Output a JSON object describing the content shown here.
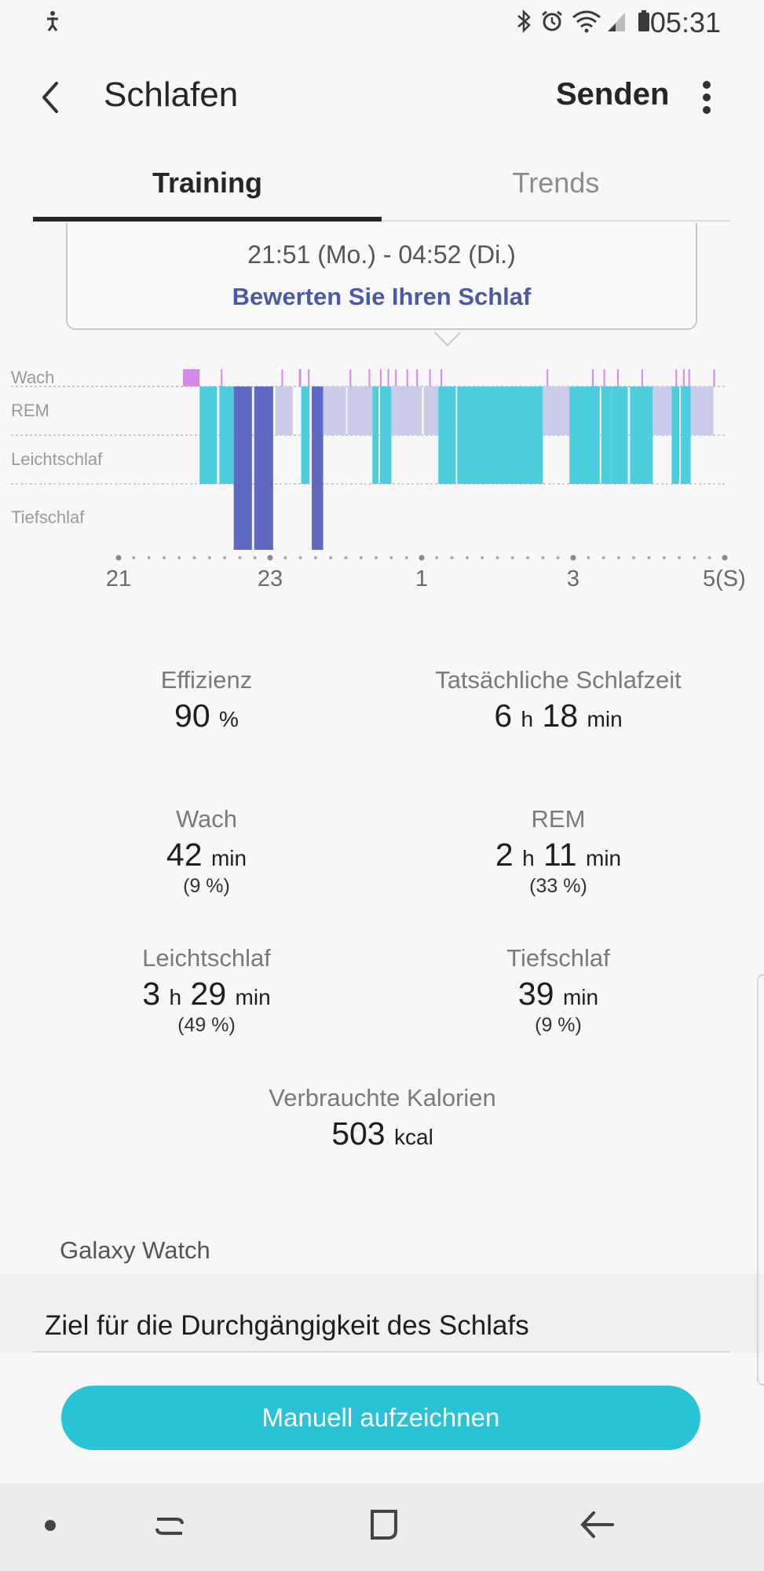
{
  "status_bar": {
    "time": "05:31"
  },
  "header": {
    "title": "Schlafen",
    "send_label": "Senden"
  },
  "tabs": [
    {
      "label": "Training",
      "active": true
    },
    {
      "label": "Trends",
      "active": false
    }
  ],
  "tooltip": {
    "time_range": "21:51 (Mo.) - 04:52 (Di.)",
    "rate_link": "Bewerten Sie Ihren Schlaf"
  },
  "chart_data": {
    "type": "hypnogram",
    "stages": [
      "Wach",
      "REM",
      "Leichtschlaf",
      "Tiefschlaf"
    ],
    "x_ticks": [
      "21",
      "23",
      "1",
      "3",
      "5(S)"
    ],
    "x_range_hours": [
      21,
      29
    ],
    "colors": {
      "Wach": "#d48ae8",
      "REM": "#c9cbe9",
      "Leichtschlaf": "#4ccede",
      "Tiefschlaf": "#5f68c2"
    },
    "segments": [
      {
        "stage": "Wach",
        "start": 21.85,
        "end": 22.07
      },
      {
        "stage": "Leichtschlaf",
        "start": 22.07,
        "end": 22.3
      },
      {
        "stage": "Leichtschlaf",
        "start": 22.33,
        "end": 22.52
      },
      {
        "stage": "Tiefschlaf",
        "start": 22.52,
        "end": 22.76
      },
      {
        "stage": "Tiefschlaf",
        "start": 22.79,
        "end": 23.04
      },
      {
        "stage": "REM",
        "start": 23.07,
        "end": 23.3
      },
      {
        "stage": "Wach",
        "start": 23.38,
        "end": 23.41
      },
      {
        "stage": "Leichtschlaf",
        "start": 23.41,
        "end": 23.52
      },
      {
        "stage": "Tiefschlaf",
        "start": 23.55,
        "end": 23.7
      },
      {
        "stage": "REM",
        "start": 23.7,
        "end": 24.0
      },
      {
        "stage": "REM",
        "start": 24.02,
        "end": 24.35
      },
      {
        "stage": "Leichtschlaf",
        "start": 24.35,
        "end": 24.43
      },
      {
        "stage": "Leichtschlaf",
        "start": 24.45,
        "end": 24.6
      },
      {
        "stage": "REM",
        "start": 24.6,
        "end": 25.0
      },
      {
        "stage": "REM",
        "start": 25.03,
        "end": 25.22
      },
      {
        "stage": "Leichtschlaf",
        "start": 25.22,
        "end": 25.45
      },
      {
        "stage": "Leichtschlaf",
        "start": 25.47,
        "end": 26.6
      },
      {
        "stage": "REM",
        "start": 26.6,
        "end": 26.95
      },
      {
        "stage": "Leichtschlaf",
        "start": 26.95,
        "end": 27.35
      },
      {
        "stage": "Leichtschlaf",
        "start": 27.37,
        "end": 27.5
      },
      {
        "stage": "Leichtschlaf",
        "start": 27.5,
        "end": 27.72
      },
      {
        "stage": "Leichtschlaf",
        "start": 27.75,
        "end": 28.05
      },
      {
        "stage": "REM",
        "start": 28.05,
        "end": 28.3
      },
      {
        "stage": "Leichtschlaf",
        "start": 28.3,
        "end": 28.4
      },
      {
        "stage": "Leichtschlaf",
        "start": 28.42,
        "end": 28.55
      },
      {
        "stage": "REM",
        "start": 28.55,
        "end": 28.85
      }
    ],
    "wake_blips": [
      22.35,
      23.15,
      23.5,
      24.05,
      24.3,
      24.45,
      24.55,
      24.65,
      24.8,
      24.93,
      25.1,
      25.25,
      26.65,
      27.25,
      27.4,
      27.58,
      27.9,
      28.35,
      28.45,
      28.52,
      28.85
    ]
  },
  "stats": {
    "efficiency": {
      "title": "Effizienz",
      "value": "90",
      "unit": "%"
    },
    "actual_sleep": {
      "title": "Tatsächliche Schlafzeit",
      "h": "6",
      "h_unit": "h",
      "m": "18",
      "m_unit": "min"
    },
    "wake": {
      "title": "Wach",
      "m": "42",
      "m_unit": "min",
      "pct": "(9 %)"
    },
    "rem": {
      "title": "REM",
      "h": "2",
      "h_unit": "h",
      "m": "11",
      "m_unit": "min",
      "pct": "(33 %)"
    },
    "light": {
      "title": "Leichtschlaf",
      "h": "3",
      "h_unit": "h",
      "m": "29",
      "m_unit": "min",
      "pct": "(49 %)"
    },
    "deep": {
      "title": "Tiefschlaf",
      "m": "39",
      "m_unit": "min",
      "pct": "(9 %)"
    },
    "calories": {
      "title": "Verbrauchte Kalorien",
      "value": "503",
      "unit": "kcal"
    }
  },
  "device_label": "Galaxy Watch",
  "goal_title": "Ziel für die Durchgängigkeit des Schlafs",
  "record_button_label": "Manuell aufzeichnen",
  "icons": [
    "accessibility-icon",
    "bluetooth-icon",
    "alarm-icon",
    "wifi-icon",
    "signal-icon",
    "battery-icon",
    "back-arrow-icon",
    "more-vert-icon",
    "nav-dot-icon",
    "recent-apps-icon",
    "home-icon",
    "nav-back-icon"
  ]
}
